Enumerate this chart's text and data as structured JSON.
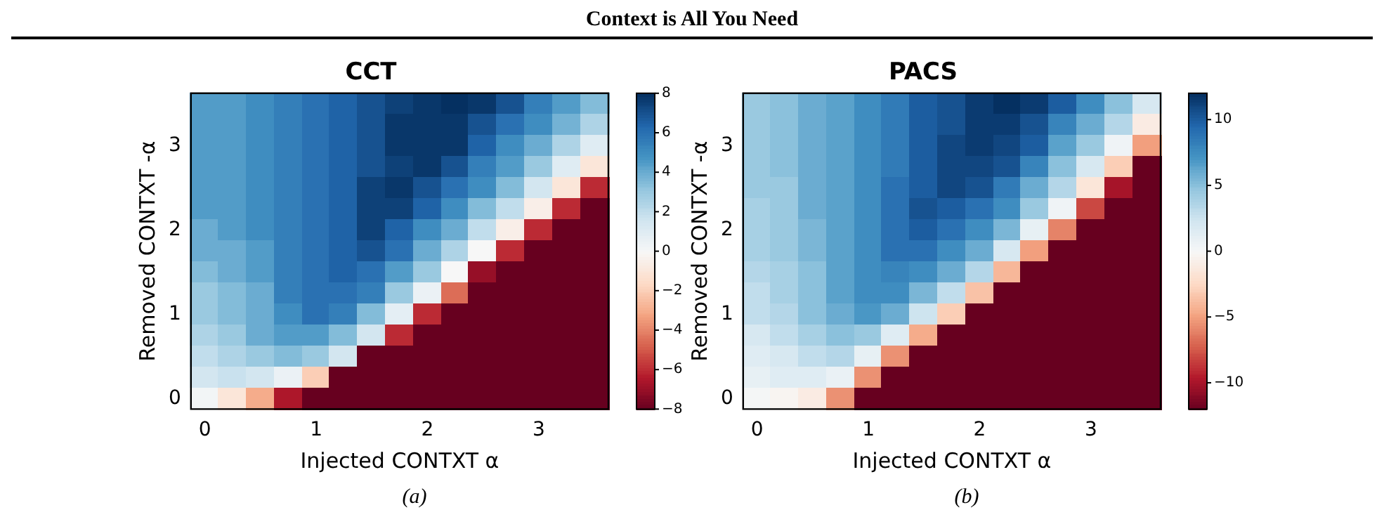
{
  "chart_data": [
    {
      "type": "heatmap",
      "title": "CCT",
      "xlabel": "Injected CONTXT α",
      "ylabel": "Removed CONTXT -α",
      "annotations": [
        "Context is All You Need",
        "(a)"
      ],
      "categories": [
        "0",
        null,
        null,
        null,
        "1",
        null,
        null,
        null,
        "2",
        null,
        null,
        null,
        "3",
        null,
        null
      ],
      "y_categories": [
        null,
        null,
        "3",
        null,
        null,
        null,
        "2",
        null,
        null,
        null,
        "1",
        null,
        null,
        null,
        "0"
      ],
      "clim": [
        -8,
        8
      ],
      "cticks": [
        {
          "value": -8,
          "label": "−8"
        },
        {
          "value": -6,
          "label": "−6"
        },
        {
          "value": -4,
          "label": "−4"
        },
        {
          "value": -2,
          "label": "−2"
        },
        0,
        2,
        4,
        6,
        8
      ],
      "cells": [
        [
          4.5,
          4.5,
          5,
          5.5,
          6,
          6.5,
          7,
          7.5,
          7.8,
          8,
          7.8,
          7,
          5.5,
          4.5,
          3.5
        ],
        [
          4.5,
          4.5,
          5,
          5.5,
          6,
          6.5,
          7,
          7.8,
          7.8,
          7.8,
          7,
          6,
          5,
          3.8,
          2.5
        ],
        [
          4.5,
          4.5,
          5,
          5.5,
          6,
          6.5,
          7,
          7.8,
          7.8,
          7.8,
          6.5,
          5,
          4,
          2.5,
          1
        ],
        [
          4.5,
          4.5,
          5,
          5.5,
          6,
          6.5,
          7,
          7.5,
          7.8,
          7,
          5.5,
          4.5,
          3,
          1,
          -1
        ],
        [
          4.5,
          4.5,
          5,
          5.5,
          6,
          6.5,
          7.5,
          7.8,
          7,
          6,
          5,
          3.5,
          1.5,
          -1,
          -6
        ],
        [
          4.5,
          4.5,
          5,
          5.5,
          6,
          6.5,
          7.5,
          7.5,
          6.5,
          5,
          3.5,
          2,
          -0.5,
          -6,
          -8
        ],
        [
          4,
          4.5,
          5,
          5.5,
          6,
          6.5,
          7.5,
          6.5,
          5,
          4,
          2,
          -0.5,
          -6,
          -8,
          -8
        ],
        [
          4,
          4,
          4.5,
          5.5,
          6,
          6.5,
          7,
          6,
          4,
          2.5,
          0,
          -6,
          -8,
          -8,
          -8
        ],
        [
          3.5,
          4,
          4.5,
          5.5,
          6,
          6.5,
          6,
          4.5,
          3,
          0,
          -7,
          -8,
          -8,
          -8,
          -8
        ],
        [
          3,
          3.5,
          4,
          5.5,
          6,
          6,
          5.5,
          3,
          0.5,
          -4.5,
          -8,
          -8,
          -8,
          -8,
          -8
        ],
        [
          3,
          3.5,
          4,
          5,
          6,
          5.5,
          3.5,
          0.8,
          -6,
          -8,
          -8,
          -8,
          -8,
          -8,
          -8
        ],
        [
          2.5,
          3,
          4,
          4.5,
          4.5,
          3.5,
          1.5,
          -6,
          -8,
          -8,
          -8,
          -8,
          -8,
          -8,
          -8
        ],
        [
          2,
          2.5,
          3,
          3.5,
          3,
          1.5,
          -8,
          -8,
          -8,
          -8,
          -8,
          -8,
          -8,
          -8,
          -8
        ],
        [
          1.5,
          1.8,
          1.5,
          0.5,
          -2,
          -8,
          -8,
          -8,
          -8,
          -8,
          -8,
          -8,
          -8,
          -8,
          -8
        ],
        [
          0.2,
          -1,
          -3,
          -6.5,
          -8,
          -8,
          -8,
          -8,
          -8,
          -8,
          -8,
          -8,
          -8,
          -8,
          -8
        ]
      ]
    },
    {
      "type": "heatmap",
      "title": "PACS",
      "xlabel": "Injected CONTXT α",
      "ylabel": "Removed CONTXT -α",
      "annotations": [
        "(b)"
      ],
      "categories": [
        "0",
        null,
        null,
        null,
        "1",
        null,
        null,
        null,
        "2",
        null,
        null,
        null,
        "3",
        null,
        null
      ],
      "y_categories": [
        null,
        null,
        "3",
        null,
        null,
        null,
        "2",
        null,
        null,
        null,
        "1",
        null,
        null,
        null,
        "0"
      ],
      "clim": [
        -12,
        12
      ],
      "cticks": [
        {
          "value": -10,
          "label": "−10"
        },
        {
          "value": -5,
          "label": "−5"
        },
        0,
        5,
        10
      ],
      "cells": [
        [
          4.5,
          5,
          6,
          6.5,
          7.5,
          8.5,
          10,
          10.5,
          11.5,
          12,
          11.5,
          10,
          7.5,
          5,
          2
        ],
        [
          4.5,
          5,
          6,
          6.5,
          7.5,
          8.5,
          10,
          10.5,
          11.5,
          11.5,
          10.5,
          8,
          6,
          3.5,
          -1
        ],
        [
          4.5,
          5,
          6,
          6.5,
          7.5,
          8.5,
          10,
          11,
          11.5,
          11,
          10,
          6.5,
          4.5,
          0.5,
          -5
        ],
        [
          4.5,
          5,
          6,
          6.5,
          7.5,
          8.5,
          10,
          11,
          11,
          10.5,
          8,
          5,
          2,
          -3,
          -12
        ],
        [
          4.5,
          4.5,
          6,
          6.5,
          7.5,
          9,
          10,
          11,
          10.5,
          8.5,
          6,
          3.5,
          -1.5,
          -10,
          -12
        ],
        [
          4,
          4.5,
          6,
          6.5,
          7.5,
          9,
          10.5,
          10,
          9,
          7.5,
          4.5,
          0.5,
          -8,
          -12,
          -12
        ],
        [
          4,
          4.5,
          5.5,
          6.5,
          7.5,
          9,
          10,
          9,
          7.5,
          5.5,
          1,
          -6,
          -12,
          -12,
          -12
        ],
        [
          4,
          4.5,
          5.5,
          6.5,
          7.5,
          9,
          9,
          7.5,
          6,
          2,
          -5,
          -12,
          -12,
          -12,
          -12
        ],
        [
          3.5,
          4,
          5,
          6.5,
          7.5,
          8,
          7.5,
          6,
          3.5,
          -4,
          -12,
          -12,
          -12,
          -12,
          -12
        ],
        [
          3,
          4,
          5,
          6.5,
          7.5,
          7.5,
          5.5,
          3,
          -3.5,
          -12,
          -12,
          -12,
          -12,
          -12,
          -12
        ],
        [
          3,
          3.5,
          5,
          6,
          7,
          6,
          2.5,
          -3,
          -12,
          -12,
          -12,
          -12,
          -12,
          -12,
          -12
        ],
        [
          2,
          3,
          4,
          5,
          4.5,
          1.5,
          -4.5,
          -12,
          -12,
          -12,
          -12,
          -12,
          -12,
          -12,
          -12
        ],
        [
          1.5,
          2,
          3,
          3.5,
          1,
          -5.5,
          -12,
          -12,
          -12,
          -12,
          -12,
          -12,
          -12,
          -12,
          -12
        ],
        [
          1,
          1.5,
          1.5,
          0.8,
          -5.5,
          -12,
          -12,
          -12,
          -12,
          -12,
          -12,
          -12,
          -12,
          -12,
          -12
        ],
        [
          0.2,
          -0.3,
          -1,
          -5.5,
          -12,
          -12,
          -12,
          -12,
          -12,
          -12,
          -12,
          -12,
          -12,
          -12,
          -12
        ]
      ]
    }
  ]
}
